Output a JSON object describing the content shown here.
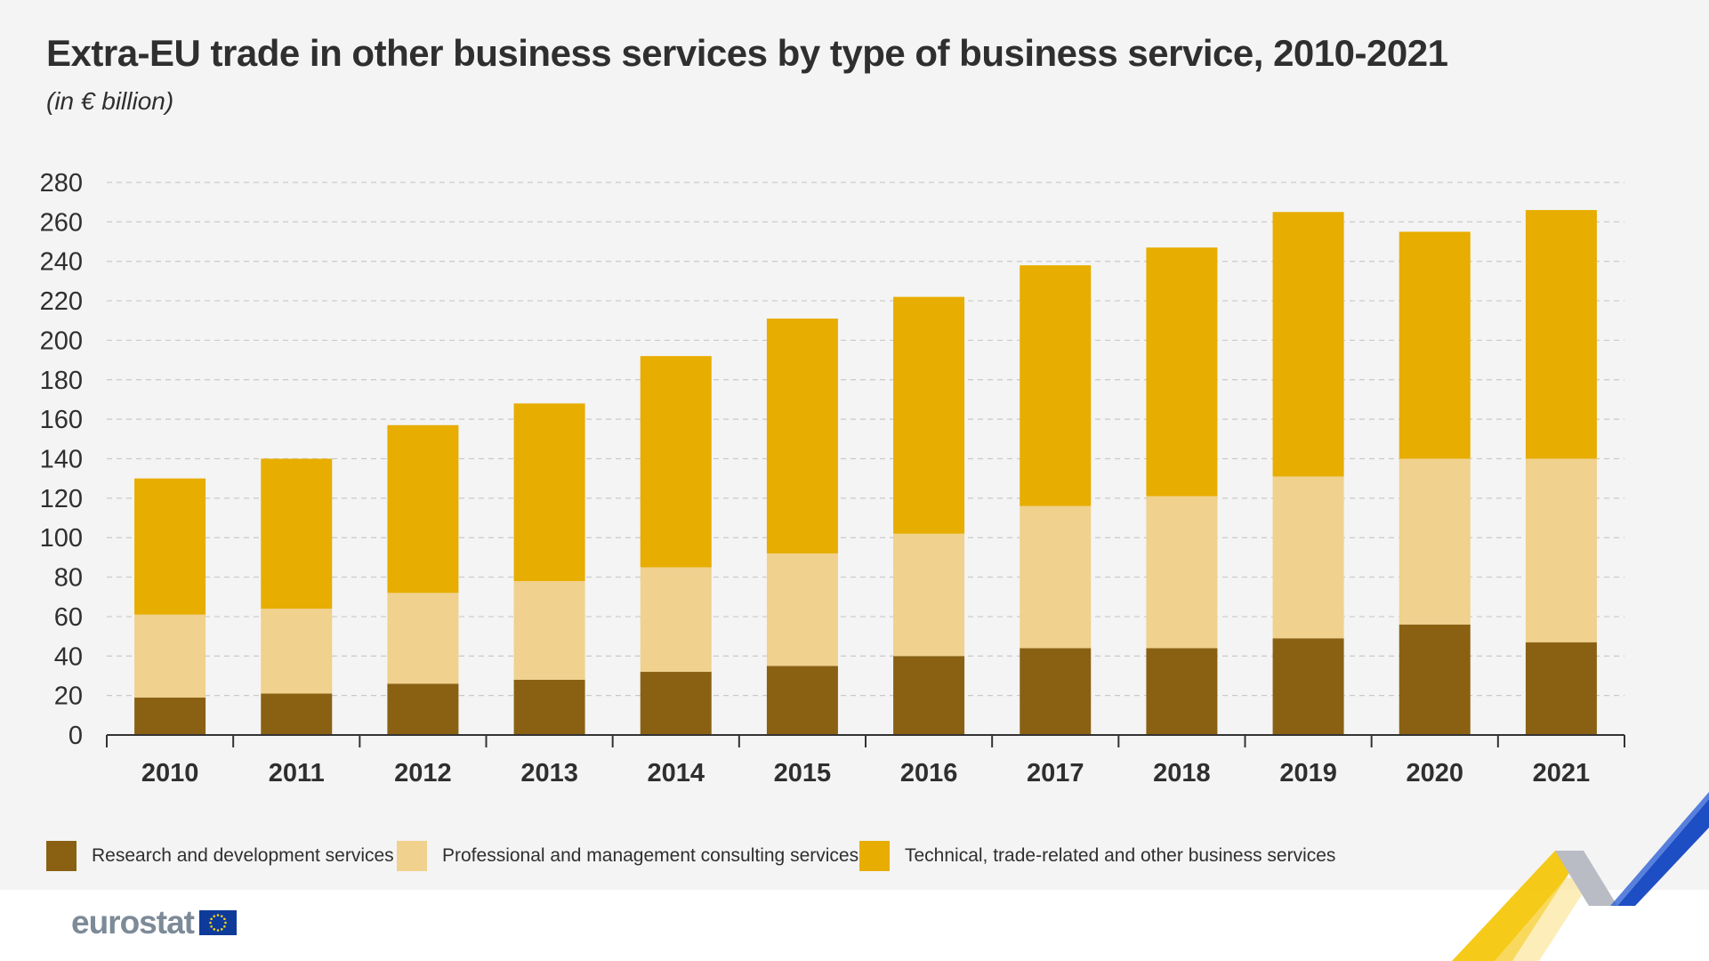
{
  "header": {
    "title": "Extra-EU trade in other business services by type of business service, 2010-2021",
    "subtitle": "(in € billion)"
  },
  "chart_data": {
    "type": "bar",
    "stacked": true,
    "title": "Extra-EU trade in other business services by type of business service, 2010-2021",
    "subtitle": "(in € billion)",
    "xlabel": "",
    "ylabel": "",
    "ylim": [
      0,
      280
    ],
    "yticks": [
      0,
      20,
      40,
      60,
      80,
      100,
      120,
      140,
      160,
      180,
      200,
      220,
      240,
      260,
      280
    ],
    "grid": true,
    "categories": [
      "2010",
      "2011",
      "2012",
      "2013",
      "2014",
      "2015",
      "2016",
      "2017",
      "2018",
      "2019",
      "2020",
      "2021"
    ],
    "series": [
      {
        "name": "Research and development services",
        "color": "#8a6113",
        "values": [
          19,
          21,
          26,
          28,
          32,
          35,
          40,
          44,
          44,
          49,
          56,
          47
        ]
      },
      {
        "name": "Professional and management consulting services",
        "color": "#f0d18d",
        "values": [
          42,
          43,
          46,
          50,
          53,
          57,
          62,
          72,
          77,
          82,
          84,
          93
        ]
      },
      {
        "name": "Technical, trade-related and other business services",
        "color": "#e7ad00",
        "values": [
          69,
          76,
          85,
          90,
          107,
          119,
          120,
          122,
          126,
          134,
          115,
          126
        ]
      }
    ],
    "legend_position": "bottom"
  },
  "legend": {
    "items": [
      {
        "label": "Research and development services",
        "color": "#8a6113"
      },
      {
        "label": "Professional and management consulting services",
        "color": "#f0d18d"
      },
      {
        "label": "Technical, trade-related and other business services",
        "color": "#e7ad00"
      }
    ]
  },
  "branding": {
    "logo_text": "eurostat",
    "flag_color": "#0e3b9a",
    "star_color": "#f7d417"
  }
}
